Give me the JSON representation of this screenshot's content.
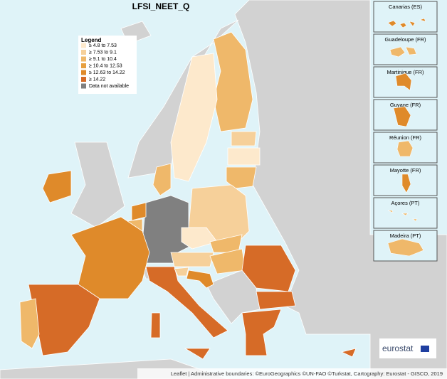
{
  "header": {
    "title": "LFSI_NEET_Q"
  },
  "legend": {
    "title": "Legend",
    "items": [
      {
        "label": "≥ 4.8 to 7.53",
        "color": "#fde9cc"
      },
      {
        "label": "≥ 7.53 to 9.1",
        "color": "#f6d09a"
      },
      {
        "label": "≥ 9.1 to 10.4",
        "color": "#efb86a"
      },
      {
        "label": "≥ 10.4 to 12.53",
        "color": "#e7a040"
      },
      {
        "label": "≥ 12.63 to 14.22",
        "color": "#df8a2a"
      },
      {
        "label": "≥ 14.22",
        "color": "#d66b27"
      },
      {
        "label": "Data not available",
        "color": "#808080"
      }
    ]
  },
  "insets": [
    "Canarias (ES)",
    "Guadeloupe (FR)",
    "Martinique (FR)",
    "Guyane (FR)",
    "Réunion (FR)",
    "Mayotte (FR)",
    "Açores (PT)",
    "Madeira (PT)"
  ],
  "attribution": "Leaflet | Administrative boundaries: ©EuroGeographics ©UN-FAO ©Turkstat, Cartography: Eurostat - GISCO, 2019",
  "logo": "eurostat"
}
